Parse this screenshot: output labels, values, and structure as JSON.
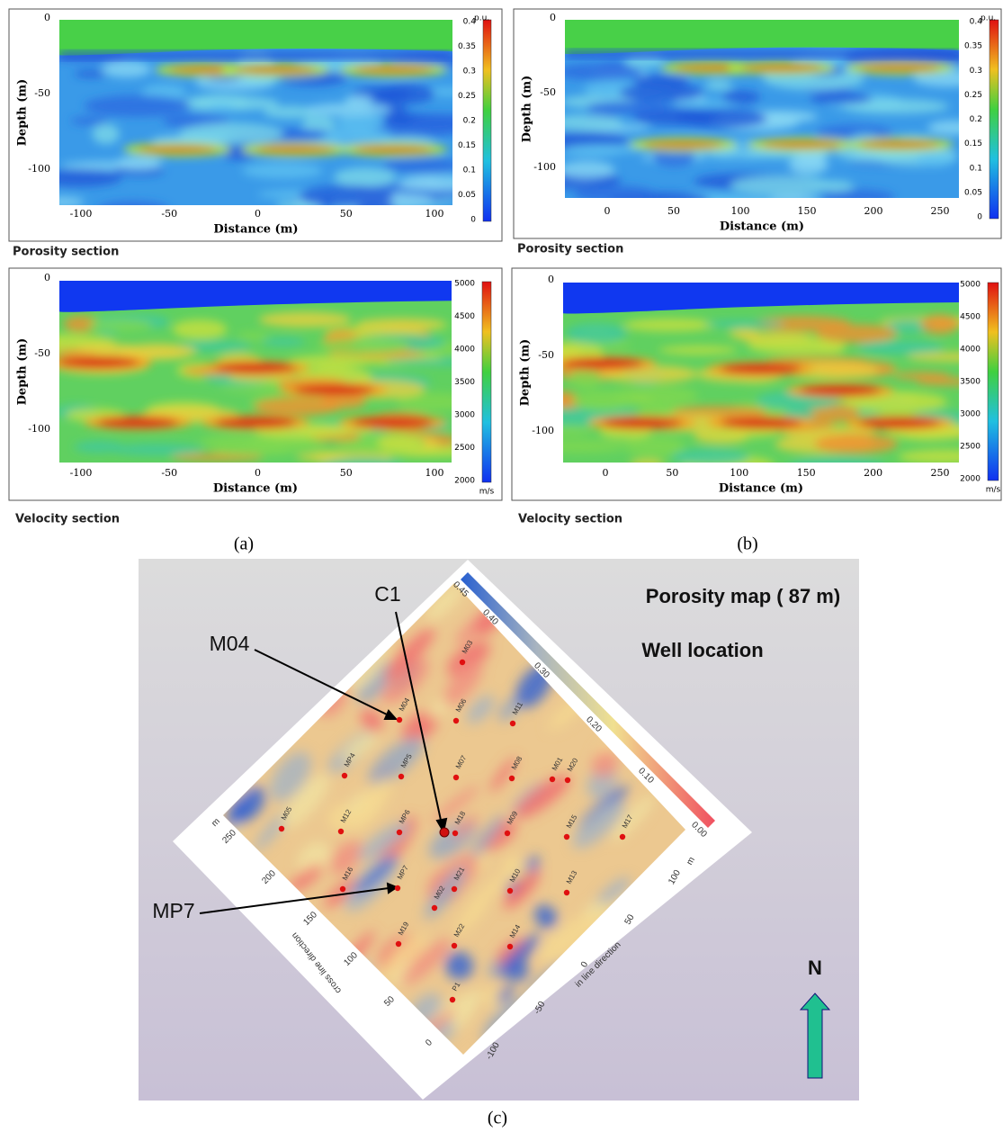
{
  "panels": [
    {
      "label": "(a)",
      "sections": [
        {
          "caption": "Porosity section",
          "x_label": "Distance (m)",
          "y_label": "Depth (m)",
          "x_ticks": [
            "-100",
            "-50",
            "0",
            "50",
            "100"
          ],
          "y_ticks": [
            "0",
            "-50",
            "-100"
          ],
          "colorbar_ticks": [
            "0.4",
            "0.35",
            "0.3",
            "0.25",
            "0.2",
            "0.15",
            "0.1",
            "0.05",
            "0"
          ],
          "colorbar_unit": "p.u."
        },
        {
          "caption": "Velocity section",
          "x_label": "Distance (m)",
          "y_label": "Depth (m)",
          "x_ticks": [
            "-100",
            "-50",
            "0",
            "50",
            "100"
          ],
          "y_ticks": [
            "0",
            "-50",
            "-100"
          ],
          "colorbar_ticks": [
            "5000",
            "4500",
            "4000",
            "3500",
            "3000",
            "2500",
            "2000"
          ],
          "colorbar_unit": "m/s"
        }
      ]
    },
    {
      "label": "(b)",
      "sections": [
        {
          "caption": "Porosity section",
          "x_label": "Distance (m)",
          "y_label": "Depth (m)",
          "x_ticks": [
            "0",
            "50",
            "100",
            "150",
            "200",
            "250"
          ],
          "y_ticks": [
            "0",
            "-50",
            "-100"
          ],
          "colorbar_ticks": [
            "0.4",
            "0.35",
            "0.3",
            "0.25",
            "0.2",
            "0.15",
            "0.1",
            "0.05",
            "0"
          ],
          "colorbar_unit": "p.u."
        },
        {
          "caption": "Velocity section",
          "x_label": "Distance (m)",
          "y_label": "Depth (m)",
          "x_ticks": [
            "0",
            "50",
            "100",
            "150",
            "200",
            "250"
          ],
          "y_ticks": [
            "0",
            "-50",
            "-100"
          ],
          "colorbar_ticks": [
            "5000",
            "4500",
            "4000",
            "3500",
            "3000",
            "2500",
            "2000"
          ],
          "colorbar_unit": "m/s"
        }
      ]
    }
  ],
  "map": {
    "label": "(c)",
    "title": "Porosity map ( 87 m)",
    "subtitle": "Well location",
    "callouts": [
      "C1",
      "M04",
      "MP7"
    ],
    "north": "N",
    "wells": [
      "M03",
      "M04",
      "M06",
      "M11",
      "MP4",
      "MP5",
      "M07",
      "M08",
      "M01",
      "M20",
      "M05",
      "M12",
      "MP6",
      "M18",
      "M09",
      "M15",
      "M17",
      "M16",
      "MP7",
      "M21",
      "M10",
      "M13",
      "M02",
      "M19",
      "M22",
      "M14",
      "P1"
    ],
    "colorbar_ticks": [
      "0.45",
      "0.40",
      "0.30",
      "0.20",
      "0.10",
      "0.00"
    ],
    "cross_line": {
      "label": "cross line direction",
      "ticks": [
        "250",
        "200",
        "150",
        "100",
        "50",
        "0"
      ],
      "unit": "m"
    },
    "in_line": {
      "label": "in line direction",
      "ticks": [
        "-100",
        "-50",
        "0",
        "50",
        "100"
      ],
      "unit": "m"
    }
  }
}
